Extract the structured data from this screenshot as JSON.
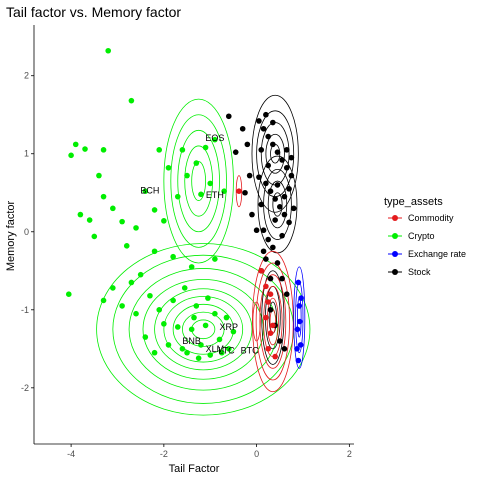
{
  "chart_data": {
    "type": "scatter",
    "title": "Tail factor vs. Memory factor",
    "xlabel": "Tail Factor",
    "ylabel": "Memory factor",
    "xlim": [
      -4.8,
      2.1
    ],
    "ylim": [
      -2.72,
      2.65
    ],
    "x_ticks": [
      -4,
      -2,
      0,
      2
    ],
    "y_ticks": [
      -2,
      -1,
      0,
      1,
      2
    ],
    "grid": false,
    "legend": {
      "title": "type_assets",
      "placement": "right",
      "entries": [
        {
          "name": "Commodity",
          "color": "#e41a1c"
        },
        {
          "name": "Crypto",
          "color": "#00ee00"
        },
        {
          "name": "Exchange rate",
          "color": "#0000ff"
        },
        {
          "name": "Stock",
          "color": "#000000"
        }
      ]
    },
    "series": [
      {
        "name": "Crypto",
        "color": "#00ee00",
        "points": [
          [
            -3.2,
            2.32
          ],
          [
            -2.7,
            1.68
          ],
          [
            -2.1,
            1.05
          ],
          [
            -3.3,
            1.05
          ],
          [
            -3.7,
            1.06
          ],
          [
            -3.9,
            1.12
          ],
          [
            -4.0,
            0.98
          ],
          [
            -3.4,
            0.72
          ],
          [
            -3.3,
            0.45
          ],
          [
            -2.4,
            0.52
          ],
          [
            -3.1,
            0.3
          ],
          [
            -2.9,
            0.13
          ],
          [
            -2.6,
            0.05
          ],
          [
            -3.8,
            0.22
          ],
          [
            -3.6,
            0.15
          ],
          [
            -3.5,
            -0.06
          ],
          [
            -2.2,
            0.28
          ],
          [
            -2.0,
            0.14
          ],
          [
            -1.7,
            0.45
          ],
          [
            -1.5,
            0.72
          ],
          [
            -1.3,
            0.88
          ],
          [
            -1.1,
            1.08
          ],
          [
            -0.9,
            1.18
          ],
          [
            -1.0,
            0.62
          ],
          [
            -1.2,
            0.48
          ],
          [
            -0.7,
            0.52
          ],
          [
            -1.6,
            1.05
          ],
          [
            -1.9,
            0.82
          ],
          [
            -4.05,
            -0.8
          ],
          [
            -3.1,
            -0.72
          ],
          [
            -2.9,
            -0.95
          ],
          [
            -2.6,
            -1.05
          ],
          [
            -2.4,
            -1.35
          ],
          [
            -2.2,
            -1.55
          ],
          [
            -2.0,
            -1.18
          ],
          [
            -1.8,
            -0.88
          ],
          [
            -1.6,
            -1.5
          ],
          [
            -1.4,
            -1.25
          ],
          [
            -1.2,
            -1.45
          ],
          [
            -1.0,
            -1.58
          ],
          [
            -0.8,
            -1.38
          ],
          [
            -0.6,
            -1.5
          ],
          [
            -0.5,
            -1.28
          ],
          [
            -0.9,
            -1.05
          ],
          [
            -1.3,
            -0.95
          ],
          [
            -1.7,
            -1.22
          ],
          [
            -1.5,
            -1.55
          ],
          [
            -2.3,
            -0.82
          ],
          [
            -2.7,
            -0.65
          ],
          [
            -1.1,
            -1.2
          ],
          [
            -0.75,
            -1.55
          ],
          [
            -1.25,
            -1.62
          ],
          [
            -2.1,
            -1.0
          ],
          [
            -1.35,
            -1.1
          ],
          [
            -1.55,
            -0.72
          ],
          [
            -2.5,
            -0.55
          ],
          [
            -3.3,
            -0.88
          ],
          [
            -1.9,
            -1.45
          ],
          [
            -0.65,
            -1.1
          ],
          [
            -1.05,
            -0.85
          ],
          [
            -2.2,
            -0.25
          ],
          [
            -1.8,
            -0.32
          ],
          [
            -2.8,
            -0.18
          ],
          [
            -1.4,
            -0.45
          ],
          [
            -0.9,
            -0.35
          ]
        ]
      },
      {
        "name": "Stock",
        "color": "#000000",
        "points": [
          [
            -0.6,
            1.48
          ],
          [
            -0.3,
            1.32
          ],
          [
            -0.2,
            1.12
          ],
          [
            -0.45,
            1.02
          ],
          [
            -0.15,
            0.72
          ],
          [
            -0.25,
            0.5
          ],
          [
            -0.1,
            0.22
          ],
          [
            0.0,
            0.02
          ],
          [
            0.15,
            -0.25
          ],
          [
            0.1,
            -0.5
          ],
          [
            0.05,
            1.42
          ],
          [
            0.15,
            1.32
          ],
          [
            0.25,
            1.22
          ],
          [
            0.35,
            1.12
          ],
          [
            0.45,
            1.02
          ],
          [
            0.55,
            0.92
          ],
          [
            0.65,
            0.82
          ],
          [
            0.75,
            0.72
          ],
          [
            0.2,
            0.62
          ],
          [
            0.3,
            0.52
          ],
          [
            0.4,
            0.42
          ],
          [
            0.5,
            0.32
          ],
          [
            0.6,
            0.22
          ],
          [
            0.7,
            0.12
          ],
          [
            0.15,
            0.02
          ],
          [
            0.25,
            -0.1
          ],
          [
            0.35,
            -0.2
          ],
          [
            0.45,
            -0.4
          ],
          [
            0.55,
            -0.6
          ],
          [
            0.65,
            -0.8
          ],
          [
            0.3,
            -1.0
          ],
          [
            0.4,
            -1.2
          ],
          [
            0.5,
            -1.4
          ],
          [
            0.6,
            -1.5
          ],
          [
            0.2,
            1.5
          ],
          [
            0.35,
            1.4
          ],
          [
            0.1,
            1.05
          ],
          [
            0.45,
            0.6
          ],
          [
            0.6,
            0.45
          ],
          [
            0.8,
            0.3
          ],
          [
            0.25,
            0.85
          ],
          [
            0.05,
            0.7
          ],
          [
            0.4,
            0.15
          ],
          [
            0.7,
            0.55
          ],
          [
            0.3,
            -0.6
          ],
          [
            0.2,
            -0.35
          ],
          [
            0.55,
            -0.05
          ],
          [
            0.1,
            0.35
          ],
          [
            0.65,
            1.05
          ],
          [
            0.75,
            0.95
          ]
        ]
      },
      {
        "name": "Commodity",
        "color": "#e41a1c",
        "points": [
          [
            -0.38,
            0.52
          ],
          [
            0.1,
            -0.5
          ],
          [
            0.2,
            -0.7
          ],
          [
            0.25,
            -0.9
          ],
          [
            0.2,
            -1.1
          ],
          [
            0.3,
            -1.3
          ],
          [
            0.25,
            -1.5
          ],
          [
            0.4,
            -1.6
          ],
          [
            0.35,
            -1.2
          ],
          [
            0.3,
            -0.8
          ]
        ]
      },
      {
        "name": "Exchange rate",
        "color": "#0000ff",
        "points": [
          [
            0.9,
            -0.65
          ],
          [
            0.92,
            -0.95
          ],
          [
            0.88,
            -1.25
          ],
          [
            0.95,
            -1.45
          ],
          [
            0.9,
            -1.65
          ],
          [
            0.93,
            -1.15
          ],
          [
            0.87,
            -1.5
          ],
          [
            0.96,
            -0.85
          ]
        ]
      }
    ],
    "annotations": [
      {
        "text": "EOS",
        "x": -0.9,
        "y": 1.2
      },
      {
        "text": "BCH",
        "x": -2.3,
        "y": 0.53
      },
      {
        "text": "ETH",
        "x": -0.9,
        "y": 0.47
      },
      {
        "text": "XRP",
        "x": -0.6,
        "y": -1.22
      },
      {
        "text": "BNB",
        "x": -1.4,
        "y": -1.4
      },
      {
        "text": "XLM",
        "x": -0.9,
        "y": -1.5
      },
      {
        "text": "LTC",
        "x": -0.65,
        "y": -1.52
      },
      {
        "text": "BTC",
        "x": -0.15,
        "y": -1.52
      }
    ]
  }
}
